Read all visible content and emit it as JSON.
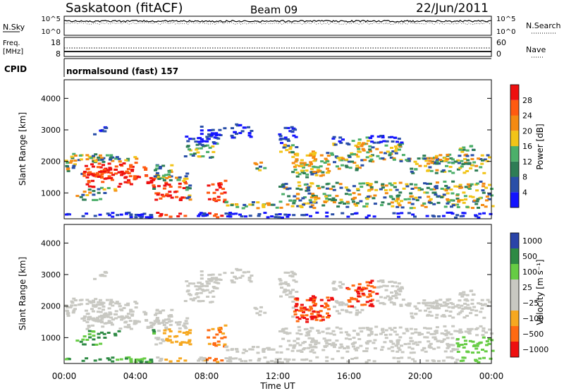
{
  "header": {
    "station": "Saskatoon (fitACF)",
    "beam": "Beam 09",
    "date": "22/Jun/2011"
  },
  "panels": {
    "nsky": {
      "label": "N.Sky",
      "right_label": "N.Search",
      "ticks_left": [
        "10^5",
        "10^0"
      ],
      "ticks_right": [
        "10^5",
        "10^0"
      ]
    },
    "freq": {
      "label_line1": "Freq.",
      "label_line2": "[MHz]",
      "right_label": "Nave",
      "ticks_left": [
        "18",
        "8"
      ],
      "ticks_right": [
        "60",
        "0"
      ]
    },
    "cpid": {
      "label": "CPID",
      "value": "normalsound (fast) 157"
    }
  },
  "colors": {
    "power": [
      "#1414ff",
      "#2a4fa8",
      "#2e7d55",
      "#4caf6a",
      "#f2c418",
      "#f48a12",
      "#ff5a10",
      "#ee1010"
    ],
    "velocity": [
      "#ee1010",
      "#ff6a12",
      "#f6a820",
      "#c8c8c2",
      "#c8c8c2",
      "#66cc44",
      "#2e8a44",
      "#2a44a8"
    ]
  },
  "chart_data": [
    {
      "type": "heatmap",
      "title": "",
      "ylabel": "Slant Range [km]",
      "xlabel": "",
      "x_range": [
        "00:00",
        "24:00"
      ],
      "ylim": [
        180,
        4590
      ],
      "yticks": [
        1000,
        2000,
        3000,
        4000
      ],
      "colorbar": {
        "label": "Power [dB]",
        "range": [
          0,
          32
        ],
        "ticks": [
          "4",
          "8",
          "12",
          "16",
          "20",
          "24",
          "28"
        ]
      }
    },
    {
      "type": "heatmap",
      "title": "",
      "ylabel": "Slant Range [km]",
      "xlabel": "Time UT",
      "x_range": [
        "00:00",
        "24:00"
      ],
      "ylim": [
        180,
        4590
      ],
      "yticks": [
        1000,
        2000,
        3000,
        4000
      ],
      "xticks": [
        "00:00",
        "04:00",
        "08:00",
        "12:00",
        "16:00",
        "20:00",
        "00:00"
      ],
      "colorbar": {
        "label": "Velocity [m s⁻¹]",
        "ticks": [
          "1000",
          "500",
          "100",
          "25",
          "−25",
          "−100",
          "−500",
          "−1000"
        ]
      }
    }
  ]
}
